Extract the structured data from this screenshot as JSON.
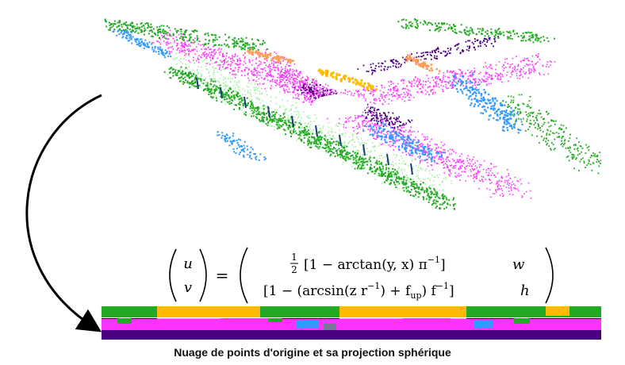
{
  "caption": "Nuage de points d'origine et sa projection sphérique",
  "equation": {
    "lhs_top": "u",
    "lhs_bottom": "v",
    "equals": "=",
    "row1_frac_num": "1",
    "row1_frac_den": "2",
    "row1_body": "[1 − arctan(y, x) π",
    "row1_sup": "−1",
    "row1_close": "]",
    "row1_factor": "w",
    "row2_body": "[1 − (arcsin(z r",
    "row2_sup1": "−1",
    "row2_mid": ") + f",
    "row2_sub": "up",
    "row2_close": ") f",
    "row2_sup2": "−1",
    "row2_end": "]",
    "row2_factor": "h"
  },
  "colors": {
    "road": "#ff33ff",
    "vegetation": "#22aa22",
    "terrain": "#99ee99",
    "car": "#3399ff",
    "building": "#ffbb00",
    "sidewalk": "#4b0082",
    "pole": "#1a3a7a",
    "other": "#ff9955"
  }
}
